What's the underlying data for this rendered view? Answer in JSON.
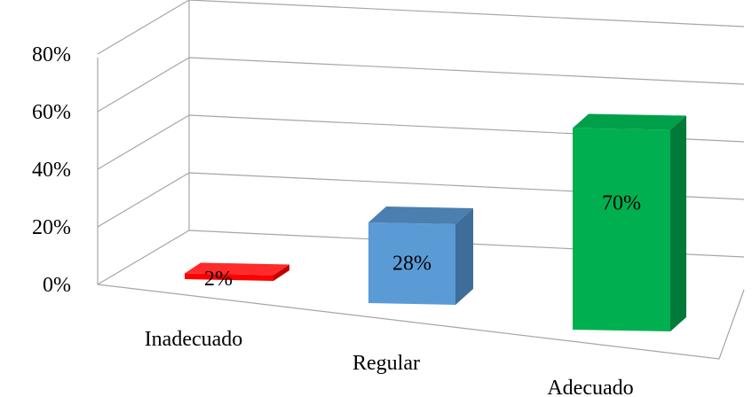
{
  "chart_data": {
    "type": "bar",
    "view": "3d",
    "categories": [
      "Inadecuado",
      "Regular",
      "Adecuado"
    ],
    "values": [
      0.02,
      0.28,
      0.7
    ],
    "data_labels": [
      "2%",
      "28%",
      "70%"
    ],
    "y_ticks": [
      "0%",
      "20%",
      "40%",
      "60%",
      "80%"
    ],
    "ylim": [
      0,
      0.8
    ],
    "grid": true,
    "legend": "none",
    "colors": {
      "Inadecuado": {
        "front": "#ff0000",
        "top": "#ff2a2a",
        "side": "#c00000"
      },
      "Regular": {
        "front": "#5b9bd5",
        "top": "#4a7fb0",
        "side": "#3e6d99"
      },
      "Adecuado": {
        "front": "#00b050",
        "top": "#00a04a",
        "side": "#007a38"
      },
      "grid": "#a6a6a6"
    }
  }
}
